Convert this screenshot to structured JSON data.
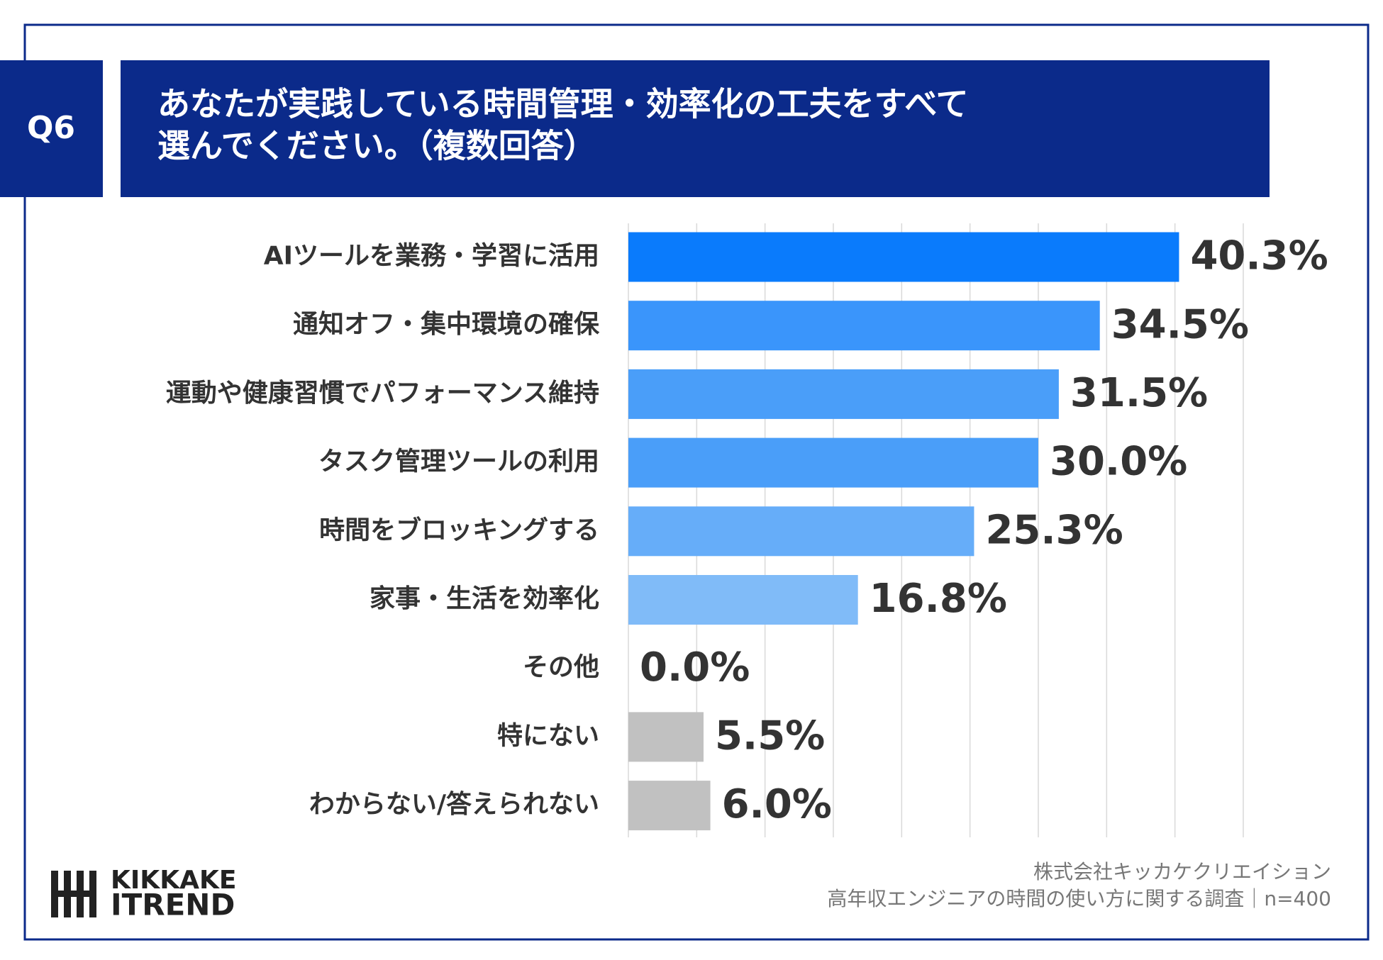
{
  "chart_data": {
    "type": "bar",
    "orientation": "horizontal",
    "question_number": "Q6",
    "title": [
      "あなたが実践している時間管理・効率化の工夫をすべて",
      "選んでください。（複数回答）"
    ],
    "categories": [
      "AIツールを業務・学習に活用",
      "通知オフ・集中環境の確保",
      "運動や健康習慣でパフォーマンス維持",
      "タスク管理ツールの利用",
      "時間をブロッキングする",
      "家事・生活を効率化",
      "その他",
      "特にない",
      "わからない/答えられない"
    ],
    "values": [
      40.3,
      34.5,
      31.5,
      30.0,
      25.3,
      16.8,
      0.0,
      5.5,
      6.0
    ],
    "value_labels": [
      "40.3%",
      "34.5%",
      "31.5%",
      "30.0%",
      "25.3%",
      "16.8%",
      "0.0%",
      "5.5%",
      "6.0%"
    ],
    "colors": [
      "#0a7bfc",
      "#3a95fb",
      "#4a9ef9",
      "#4a9ef9",
      "#66adf9",
      "#80bbf8",
      "#80bbf8",
      "#c1c1c1",
      "#c1c1c1"
    ],
    "xlim": [
      0,
      45
    ],
    "xticks": [
      0,
      5,
      10,
      15,
      20,
      25,
      30,
      35,
      40,
      45
    ],
    "grid": true,
    "logo": [
      "KIKKAKE",
      "ITREND"
    ],
    "source": [
      "株式会社キッカケクリエイション",
      "高年収エンジニアの時間の使い方に関する調査｜n=400"
    ]
  }
}
